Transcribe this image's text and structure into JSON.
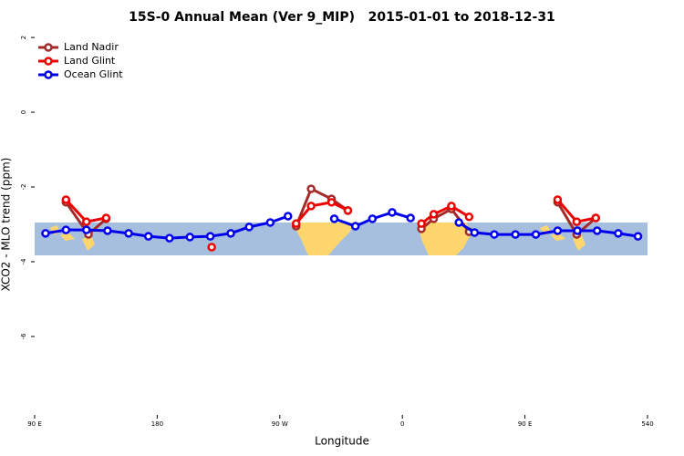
{
  "chart_data": {
    "type": "line",
    "title": "15S-0 Annual Mean (Ver 9_MIP)   2015-01-01 to 2018-12-31",
    "x_label": "Longitude",
    "y_label": "XCO2 - MLO trend (ppm)",
    "xlim": [
      90,
      540
    ],
    "ylim": [
      -8.1,
      2.1
    ],
    "xticks": [
      {
        "value": 90,
        "label": "90 E"
      },
      180,
      {
        "value": 270,
        "label": "90 W"
      },
      {
        "value": 360,
        "label": "0"
      },
      {
        "value": 450,
        "label": "90 E"
      },
      540
    ],
    "yticks": [
      2,
      0,
      -2,
      -4,
      -6
    ],
    "legend": "top-left",
    "series": [
      {
        "name": "Land Nadir",
        "color": "#a52a2a",
        "x": [
          113,
          129.5,
          142.5,
          null,
          282,
          293,
          308,
          320,
          null,
          374,
          383,
          396,
          409,
          null,
          474,
          488,
          502
        ],
        "values": [
          -2.41,
          -3.27,
          -2.85,
          null,
          -3.05,
          -2.05,
          -2.32,
          -2.63,
          null,
          -3.12,
          -2.85,
          -2.59,
          -3.2,
          null,
          -2.41,
          -3.27,
          -2.83
        ]
      },
      {
        "name": "Land Glint",
        "color": "#ee0000",
        "x": [
          113,
          128,
          142.5,
          null,
          220,
          null,
          282,
          293,
          308,
          320,
          null,
          374,
          383,
          396,
          409,
          null,
          474,
          488,
          502
        ],
        "values": [
          -2.34,
          -2.93,
          -2.83,
          null,
          -3.61,
          null,
          -2.98,
          -2.51,
          -2.41,
          -2.63,
          null,
          -2.98,
          -2.73,
          -2.51,
          -2.8,
          null,
          -2.34,
          -2.93,
          -2.83
        ]
      },
      {
        "name": "Ocean Glint",
        "color": "#0000ee",
        "x": [
          98,
          113,
          128,
          143.5,
          159,
          173.5,
          189,
          204,
          219,
          234,
          247.5,
          263,
          276,
          null,
          310,
          325.5,
          338,
          352.5,
          366,
          null,
          401.5,
          413,
          427.5,
          443,
          458,
          474,
          488.5,
          503,
          518.5,
          533
        ],
        "values": [
          -3.24,
          -3.15,
          -3.15,
          -3.17,
          -3.24,
          -3.32,
          -3.37,
          -3.34,
          -3.32,
          -3.24,
          -3.07,
          -2.95,
          -2.78,
          null,
          -2.85,
          -3.05,
          -2.85,
          -2.68,
          -2.83,
          null,
          -2.95,
          -3.22,
          -3.27,
          -3.27,
          -3.27,
          -3.17,
          -3.17,
          -3.17,
          -3.24,
          -3.32
        ]
      }
    ]
  }
}
